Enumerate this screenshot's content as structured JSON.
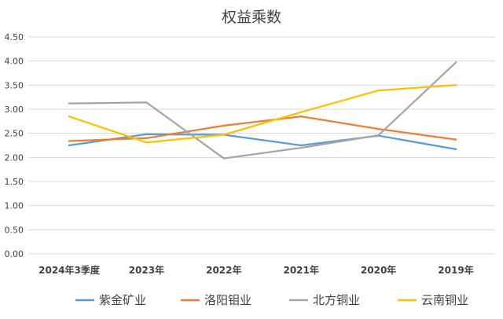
{
  "chart_data": {
    "type": "line",
    "title": "权益乘数",
    "xlabel": "",
    "ylabel": "",
    "categories": [
      "2024年3季度",
      "2023年",
      "2022年",
      "2021年",
      "2020年",
      "2019年"
    ],
    "ylim": [
      0,
      4.5
    ],
    "yticks": [
      "0.00",
      "0.50",
      "1.00",
      "1.50",
      "2.00",
      "2.50",
      "3.00",
      "3.50",
      "4.00",
      "4.50"
    ],
    "grid": true,
    "legend_position": "bottom",
    "series": [
      {
        "name": "紫金矿业",
        "color": "#5B9BD5",
        "values": [
          2.25,
          2.48,
          2.47,
          2.25,
          2.45,
          2.17
        ]
      },
      {
        "name": "洛阳钼业",
        "color": "#ED7D31",
        "values": [
          2.34,
          2.4,
          2.66,
          2.85,
          2.59,
          2.37
        ]
      },
      {
        "name": "北方铜业",
        "color": "#A5A5A5",
        "values": [
          3.12,
          3.14,
          1.98,
          2.2,
          2.46,
          3.97
        ]
      },
      {
        "name": "云南铜业",
        "color": "#FFC000",
        "values": [
          2.85,
          2.31,
          2.47,
          2.94,
          3.39,
          3.5
        ]
      }
    ]
  }
}
